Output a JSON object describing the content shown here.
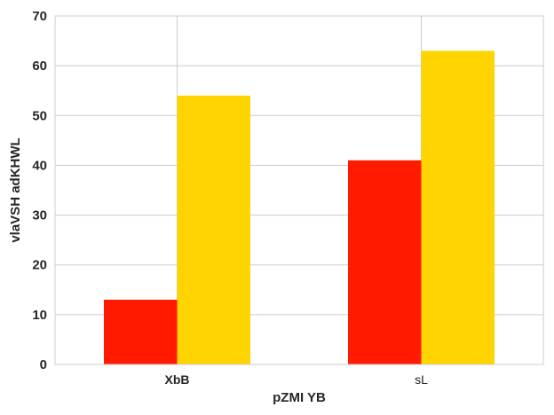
{
  "chart_data": {
    "type": "bar",
    "categories": [
      "XbB",
      "sL"
    ],
    "category_bold": [
      true,
      false
    ],
    "series": [
      {
        "values": [
          13,
          41
        ],
        "color": "#ff1a00"
      },
      {
        "values": [
          54,
          63
        ],
        "color": "#ffd400"
      }
    ],
    "xlabel": "pZMI YB",
    "ylabel": "vlaVSH adKHWL",
    "ylim": [
      0,
      70
    ],
    "yticks": [
      0,
      10,
      20,
      30,
      40,
      50,
      60,
      70
    ],
    "grid": true
  }
}
